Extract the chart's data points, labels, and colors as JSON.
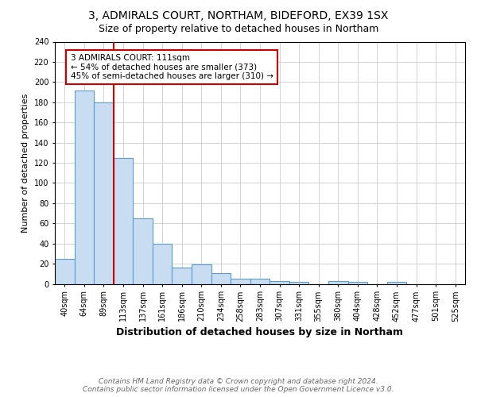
{
  "title_line1": "3, ADMIRALS COURT, NORTHAM, BIDEFORD, EX39 1SX",
  "title_line2": "Size of property relative to detached houses in Northam",
  "xlabel": "Distribution of detached houses by size in Northam",
  "ylabel": "Number of detached properties",
  "categories": [
    "40sqm",
    "64sqm",
    "89sqm",
    "113sqm",
    "137sqm",
    "161sqm",
    "186sqm",
    "210sqm",
    "234sqm",
    "258sqm",
    "283sqm",
    "307sqm",
    "331sqm",
    "355sqm",
    "380sqm",
    "404sqm",
    "428sqm",
    "452sqm",
    "477sqm",
    "501sqm",
    "525sqm"
  ],
  "values": [
    25,
    192,
    180,
    125,
    65,
    40,
    16,
    19,
    11,
    5,
    5,
    3,
    2,
    0,
    3,
    2,
    0,
    2,
    0,
    0,
    0
  ],
  "bar_color": "#c9ddf2",
  "bar_edge_color": "#5b9bd5",
  "vline_index": 3,
  "vline_color": "#cc0000",
  "annotation_text": "3 ADMIRALS COURT: 111sqm\n← 54% of detached houses are smaller (373)\n45% of semi-detached houses are larger (310) →",
  "annotation_box_color": "#ffffff",
  "annotation_box_edgecolor": "#cc0000",
  "ylim": [
    0,
    240
  ],
  "yticks": [
    0,
    20,
    40,
    60,
    80,
    100,
    120,
    140,
    160,
    180,
    200,
    220,
    240
  ],
  "footer_line1": "Contains HM Land Registry data © Crown copyright and database right 2024.",
  "footer_line2": "Contains public sector information licensed under the Open Government Licence v3.0.",
  "background_color": "#ffffff",
  "grid_color": "#cccccc",
  "title1_fontsize": 10,
  "title2_fontsize": 9,
  "xlabel_fontsize": 9,
  "ylabel_fontsize": 8,
  "tick_fontsize": 7,
  "annotation_fontsize": 7.5,
  "footer_fontsize": 6.5
}
